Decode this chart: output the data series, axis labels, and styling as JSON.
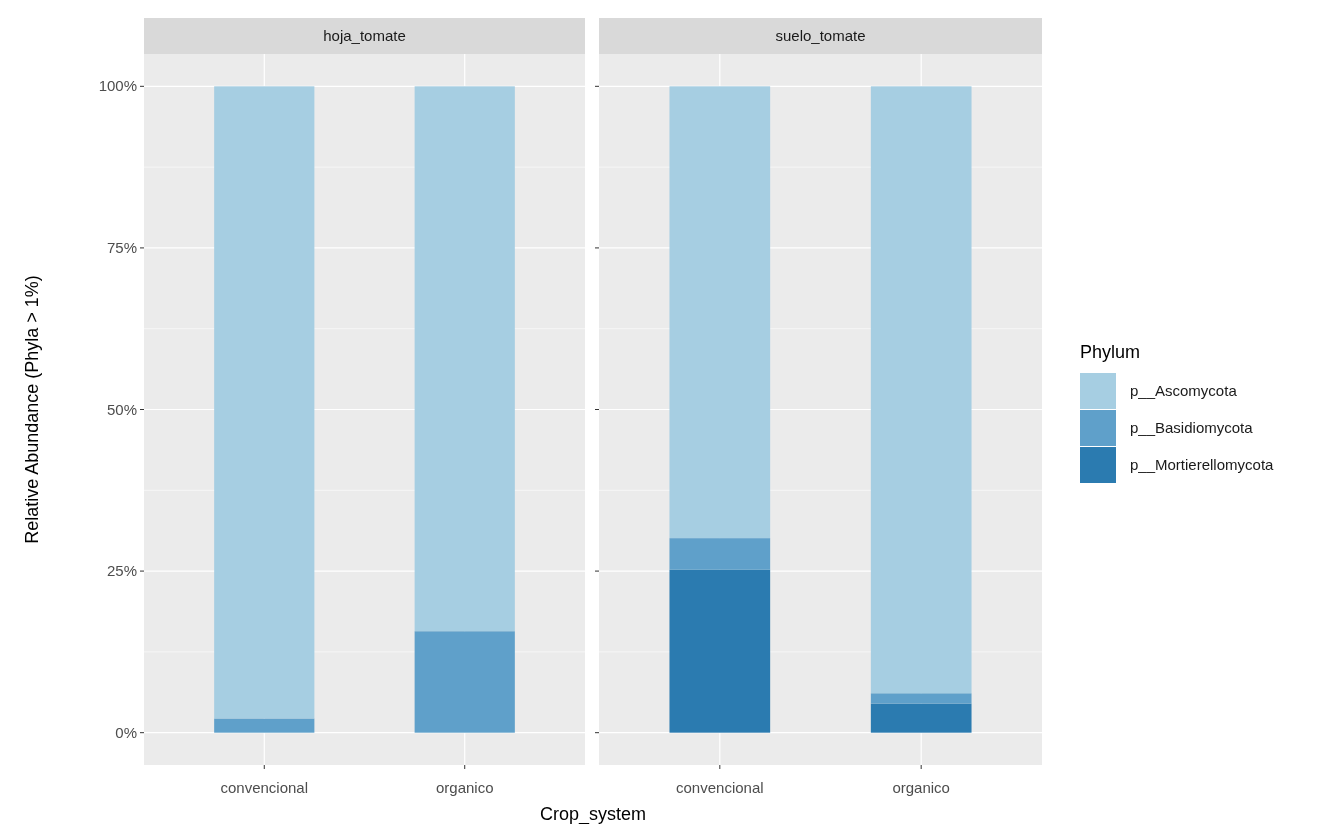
{
  "chart_data": [
    {
      "type": "bar",
      "title": "hoja_tomate",
      "ylabel": "Relative Abundance (Phyla > 1%)",
      "xlabel": "Crop_system",
      "categories": [
        "convencional",
        "organico"
      ],
      "stacked": true,
      "ylim": [
        -5,
        105
      ],
      "yticks": [
        {
          "value": 0,
          "label": "0%"
        },
        {
          "value": 25,
          "label": "25%"
        },
        {
          "value": 50,
          "label": "50%"
        },
        {
          "value": 75,
          "label": "75%"
        },
        {
          "value": 100,
          "label": "100%"
        }
      ],
      "grid": true,
      "legend": false,
      "series": [
        {
          "color": "#2b7bb0",
          "values": [
            0,
            0
          ]
        },
        {
          "color": "#5fa0ca",
          "values": [
            2.2,
            15.7
          ]
        },
        {
          "color": "#a6cee2",
          "values": [
            97.8,
            84.3
          ]
        }
      ]
    },
    {
      "type": "bar",
      "title": "suelo_tomate",
      "legend_title": "Phylum",
      "categories": [
        "convencional",
        "organico"
      ],
      "stacked": true,
      "ylim": [
        -5,
        105
      ],
      "yticks": [
        {
          "value": 0,
          "label": null
        },
        {
          "value": 25,
          "label": null
        },
        {
          "value": 50,
          "label": null
        },
        {
          "value": 75,
          "label": null
        },
        {
          "value": 100,
          "label": null
        }
      ],
      "grid": true,
      "legend": "right",
      "tick_labels": "x",
      "series": [
        {
          "name": "p__Mortierellomycota",
          "color": "#2b7bb0",
          "values": [
            25.2,
            4.5
          ]
        },
        {
          "name": "p__Basidiomycota",
          "color": "#5fa0ca",
          "values": [
            4.9,
            1.6
          ]
        },
        {
          "name": "p__Ascomycota",
          "color": "#a6cee2",
          "values": [
            69.9,
            93.9
          ]
        }
      ]
    }
  ]
}
